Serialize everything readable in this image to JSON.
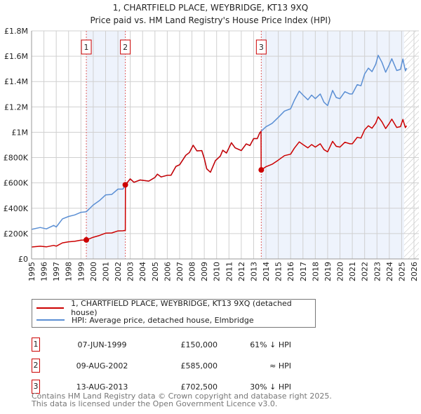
{
  "chart_data": {
    "type": "line",
    "title": "1, CHARTFIELD PLACE, WEYBRIDGE, KT13 9XQ",
    "subtitle": "Price paid vs. HM Land Registry's House Price Index (HPI)",
    "xlim": [
      1995,
      2026
    ],
    "ylim": [
      0,
      1800000
    ],
    "x_ticks": [
      "1995",
      "1996",
      "1997",
      "1998",
      "1999",
      "2000",
      "2001",
      "2002",
      "2003",
      "2004",
      "2005",
      "2006",
      "2007",
      "2008",
      "2009",
      "2010",
      "2011",
      "2012",
      "2013",
      "2014",
      "2015",
      "2016",
      "2017",
      "2018",
      "2019",
      "2020",
      "2021",
      "2022",
      "2023",
      "2024",
      "2025",
      "2026"
    ],
    "y_ticks": [
      {
        "v": 0,
        "label": "£0"
      },
      {
        "v": 200000,
        "label": "£200K"
      },
      {
        "v": 400000,
        "label": "£400K"
      },
      {
        "v": 600000,
        "label": "£600K"
      },
      {
        "v": 800000,
        "label": "£800K"
      },
      {
        "v": 1000000,
        "label": "£1M"
      },
      {
        "v": 1200000,
        "label": "£1.2M"
      },
      {
        "v": 1400000,
        "label": "£1.4M"
      },
      {
        "v": 1600000,
        "label": "£1.6M"
      },
      {
        "v": 1800000,
        "label": "£1.8M"
      }
    ],
    "grid": true,
    "forecast_hatch_from": 2025.2,
    "series": [
      {
        "name": "1, CHARTFIELD PLACE, WEYBRIDGE, KT13 9XQ (detached house)",
        "color": "#cc0000",
        "x": [
          1995.0,
          1995.7,
          1996.2,
          1996.8,
          1997.0,
          1997.5,
          1998.0,
          1998.5,
          1999.0,
          1999.44,
          2000.0,
          2000.5,
          2001.0,
          2001.5,
          2002.0,
          2002.4,
          2002.6,
          2002.61,
          2003.0,
          2003.3,
          2003.8,
          2004.5,
          2005.0,
          2005.2,
          2005.5,
          2006.0,
          2006.3,
          2006.7,
          2007.0,
          2007.5,
          2007.8,
          2008.1,
          2008.4,
          2008.8,
          2009.0,
          2009.2,
          2009.5,
          2009.9,
          2010.3,
          2010.5,
          2010.8,
          2011.2,
          2011.5,
          2012.0,
          2012.4,
          2012.7,
          2013.0,
          2013.3,
          2013.5,
          2013.6,
          2013.61,
          2014.0,
          2014.5,
          2015.0,
          2015.5,
          2016.0,
          2016.3,
          2016.7,
          2017.0,
          2017.4,
          2017.7,
          2018.0,
          2018.4,
          2018.7,
          2019.0,
          2019.4,
          2019.7,
          2020.0,
          2020.4,
          2020.8,
          2021.0,
          2021.4,
          2021.7,
          2022.0,
          2022.3,
          2022.6,
          2022.9,
          2023.1,
          2023.4,
          2023.7,
          2024.0,
          2024.2,
          2024.6,
          2024.9,
          2025.1,
          2025.3,
          2025.4
        ],
        "values": [
          94000,
          100000,
          95000,
          107000,
          101000,
          127000,
          135000,
          139000,
          148000,
          150000,
          171000,
          185000,
          203000,
          205000,
          221000,
          222000,
          225000,
          585000,
          632000,
          605000,
          623000,
          614000,
          643000,
          669000,
          647000,
          660000,
          660000,
          730000,
          743000,
          818000,
          840000,
          897000,
          853000,
          855000,
          794000,
          711000,
          684000,
          776000,
          812000,
          858000,
          836000,
          917000,
          877000,
          855000,
          908000,
          895000,
          950000,
          950000,
          996000,
          1007000,
          702500,
          728000,
          747000,
          780000,
          815000,
          827000,
          874000,
          924000,
          903000,
          877000,
          903000,
          883000,
          909000,
          863000,
          845000,
          928000,
          889000,
          883000,
          921000,
          909000,
          909000,
          960000,
          954000,
          1019000,
          1051000,
          1032000,
          1073000,
          1122000,
          1083000,
          1029000,
          1070000,
          1103000,
          1038000,
          1044000,
          1101000,
          1036000,
          1052000
        ]
      },
      {
        "name": "HPI: Average price, detached house, Elmbridge",
        "color": "#5b8fd4",
        "x": [
          1995.0,
          1995.7,
          1996.2,
          1996.8,
          1997.0,
          1997.5,
          1998.0,
          1998.5,
          1999.0,
          1999.44,
          2000.0,
          2000.5,
          2001.0,
          2001.5,
          2002.0,
          2002.4,
          2002.6,
          2003.0,
          2003.3,
          2003.8,
          2004.5,
          2005.0,
          2005.2,
          2005.5,
          2006.0,
          2006.3,
          2006.7,
          2007.0,
          2007.5,
          2007.8,
          2008.1,
          2008.4,
          2008.8,
          2009.0,
          2009.2,
          2009.5,
          2009.9,
          2010.3,
          2010.5,
          2010.8,
          2011.2,
          2011.5,
          2012.0,
          2012.4,
          2012.7,
          2013.0,
          2013.3,
          2013.5,
          2013.6,
          2014.0,
          2014.5,
          2015.0,
          2015.5,
          2016.0,
          2016.3,
          2016.7,
          2017.0,
          2017.4,
          2017.7,
          2018.0,
          2018.4,
          2018.7,
          2019.0,
          2019.4,
          2019.7,
          2020.0,
          2020.4,
          2020.8,
          2021.0,
          2021.4,
          2021.7,
          2022.0,
          2022.3,
          2022.6,
          2022.9,
          2023.1,
          2023.4,
          2023.7,
          2024.0,
          2024.2,
          2024.6,
          2024.9,
          2025.1,
          2025.3,
          2025.4
        ],
        "values": [
          233000,
          248000,
          237000,
          265000,
          252000,
          316000,
          335000,
          347000,
          368000,
          373000,
          426000,
          460000,
          505000,
          509000,
          551000,
          551000,
          583000,
          632000,
          605000,
          623000,
          614000,
          643000,
          669000,
          647000,
          660000,
          660000,
          730000,
          743000,
          818000,
          840000,
          897000,
          853000,
          855000,
          794000,
          711000,
          684000,
          776000,
          812000,
          858000,
          836000,
          917000,
          877000,
          855000,
          908000,
          895000,
          950000,
          950000,
          996000,
          1007000,
          1043000,
          1070000,
          1117000,
          1167000,
          1185000,
          1252000,
          1324000,
          1293000,
          1256000,
          1293000,
          1265000,
          1302000,
          1237000,
          1210000,
          1330000,
          1274000,
          1265000,
          1320000,
          1302000,
          1302000,
          1376000,
          1367000,
          1460000,
          1506000,
          1478000,
          1537000,
          1607000,
          1552000,
          1474000,
          1533000,
          1580000,
          1487000,
          1496000,
          1578000,
          1485000,
          1507000
        ]
      }
    ],
    "sales": [
      {
        "n": "1",
        "x": 1999.44,
        "value": 150000,
        "date": "07-JUN-1999",
        "price": "£150,000",
        "vs_hpi": "61% ↓ HPI"
      },
      {
        "n": "2",
        "x": 2002.6,
        "value": 585000,
        "date": "09-AUG-2002",
        "price": "£585,000",
        "vs_hpi": "≈ HPI"
      },
      {
        "n": "3",
        "x": 2013.62,
        "value": 702500,
        "date": "13-AUG-2013",
        "price": "£702,500",
        "vs_hpi": "30% ↓ HPI"
      }
    ]
  },
  "footer": {
    "line1": "Contains HM Land Registry data © Crown copyright and database right 2025.",
    "line2": "This data is licensed under the Open Government Licence v3.0."
  }
}
